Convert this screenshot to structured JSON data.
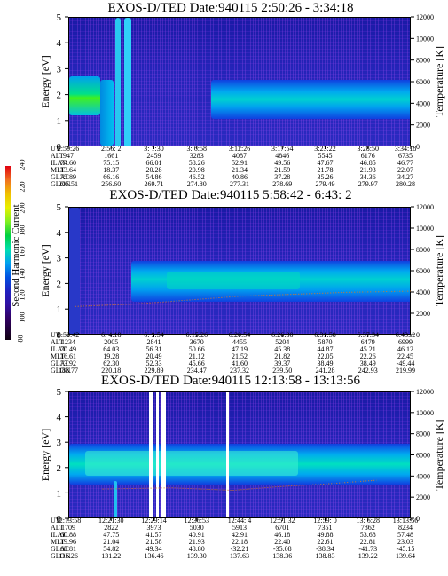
{
  "colorbar": {
    "title": "Second Harmonic Current",
    "ticks": [
      "240",
      "220",
      "200",
      "180",
      "160",
      "140",
      "120",
      "100",
      "80"
    ]
  },
  "row_labels": [
    "UT",
    "ALT",
    "ILAT",
    "MLT",
    "GLAT",
    "GLON"
  ],
  "panels": [
    {
      "title": "EXOS-D/TED  Date:940115  2:50:26 - 3:34:18",
      "left_axis": "Energy [eV]",
      "right_axis": "Temperature [K]",
      "rows": [
        [
          "2:50:26",
          "2:56: 2",
          "3: 1:30",
          "3: 6:58",
          "3:12:26",
          "3:17:54",
          "3:23:22",
          "3:28:50",
          "3:34:18"
        ],
        [
          "947",
          "1661",
          "2459",
          "3283",
          "4087",
          "4846",
          "5545",
          "6176",
          "6735"
        ],
        [
          "74.60",
          "75.15",
          "66.01",
          "58.26",
          "52.91",
          "49.56",
          "47.67",
          "46.85",
          "46.77"
        ],
        [
          "13.64",
          "18.37",
          "20.28",
          "20.98",
          "21.34",
          "21.59",
          "21.78",
          "21.93",
          "22.07"
        ],
        [
          "75.89",
          "66.16",
          "54.86",
          "46.52",
          "40.86",
          "37.28",
          "35.26",
          "34.36",
          "34.27"
        ],
        [
          "205.51",
          "256.60",
          "269.71",
          "274.80",
          "277.31",
          "278.69",
          "279.49",
          "279.97",
          "280.28"
        ]
      ]
    },
    {
      "title": "EXOS-D/TED  Date:940115  5:58:42 - 6:43: 2",
      "left_axis": "Energy [eV]",
      "right_axis": "Temperature [K]",
      "rows": [
        [
          "5:58:42",
          "6: 4:18",
          "6: 9:54",
          "6:15:26",
          "6:20:54",
          "6:26:30",
          "6:31:58",
          "6:37:34",
          "6:43: 2"
        ],
        [
          "1234",
          "2005",
          "2841",
          "3670",
          "4455",
          "5204",
          "5870",
          "6479",
          "6999"
        ],
        [
          "70.49",
          "64.03",
          "56.31",
          "50.66",
          "47.19",
          "45.38",
          "44.87",
          "45.21",
          "46.12"
        ],
        [
          "16.61",
          "19.28",
          "20.49",
          "21.12",
          "21.52",
          "21.82",
          "22.05",
          "22.26",
          "22.45"
        ],
        [
          "73.92",
          "62.30",
          "52.33",
          "45.66",
          "41.60",
          "39.37",
          "38.49",
          "38.49",
          "-49.44"
        ],
        [
          "188.77",
          "220.18",
          "229.89",
          "234.47",
          "237.32",
          "239.50",
          "241.28",
          "242.93",
          "219.99"
        ]
      ]
    },
    {
      "title": "EXOS-D/TED  Date:940115  12:13:58 - 13:13:56",
      "left_axis": "Energy [eV]",
      "right_axis": "Temperature [K]",
      "rows": [
        [
          "12:13:58",
          "12:21:30",
          "12:29:14",
          "12:36:53",
          "12:44: 4",
          "12:51:32",
          "12:59: 0",
          "13: 6:28",
          "13:13:56"
        ],
        [
          "1709",
          "2822",
          "3973",
          "5030",
          "5913",
          "6701",
          "7351",
          "7862",
          "8234"
        ],
        [
          "60.88",
          "47.75",
          "41.57",
          "40.91",
          "42.91",
          "46.18",
          "49.88",
          "53.68",
          "57.48"
        ],
        [
          "19.96",
          "21.04",
          "21.58",
          "21.93",
          "22.18",
          "22.40",
          "22.61",
          "22.81",
          "23.03"
        ],
        [
          "66.81",
          "54.82",
          "49.34",
          "48.80",
          "-32.21",
          "-35.08",
          "-38.34",
          "-41.73",
          "-45.15"
        ],
        [
          "116.26",
          "131.22",
          "136.46",
          "139.30",
          "137.63",
          "138.36",
          "138.83",
          "139.22",
          "139.64"
        ]
      ]
    }
  ],
  "chart_data": [
    {
      "type": "heatmap",
      "title": "EXOS-D/TED  Date:940115  2:50:26 - 3:34:18",
      "ylabel": "Energy [eV]",
      "y2label": "Temperature [K]",
      "ylim": [
        0,
        5
      ],
      "y2lim": [
        0,
        12000
      ],
      "yticks": [
        0,
        1,
        2,
        3,
        4,
        5
      ],
      "y2ticks": [
        0,
        2000,
        4000,
        6000,
        8000,
        10000,
        12000
      ],
      "xticks": [
        "2:50:26",
        "2:56: 2",
        "3: 1:30",
        "3: 6:58",
        "3:12:26",
        "3:17:54",
        "3:23:22",
        "3:28:50",
        "3:34:18"
      ],
      "colorbar_range": [
        80,
        240
      ]
    },
    {
      "type": "heatmap",
      "title": "EXOS-D/TED  Date:940115  5:58:42 - 6:43: 2",
      "ylabel": "Energy [eV]",
      "y2label": "Temperature [K]",
      "ylim": [
        0,
        5
      ],
      "y2lim": [
        0,
        12000
      ],
      "yticks": [
        0,
        1,
        2,
        3,
        4,
        5
      ],
      "y2ticks": [
        0,
        2000,
        4000,
        6000,
        8000,
        10000,
        12000
      ],
      "xticks": [
        "5:58:42",
        "6: 4:18",
        "6: 9:54",
        "6:15:26",
        "6:20:54",
        "6:26:30",
        "6:31:58",
        "6:37:34",
        "6:43: 2"
      ],
      "colorbar_range": [
        80,
        240
      ]
    },
    {
      "type": "heatmap",
      "title": "EXOS-D/TED  Date:940115  12:13:58 - 13:13:56",
      "ylabel": "Energy [eV]",
      "y2label": "Temperature [K]",
      "ylim": [
        0,
        5
      ],
      "y2lim": [
        0,
        12000
      ],
      "yticks": [
        0,
        1,
        2,
        3,
        4,
        5
      ],
      "y2ticks": [
        0,
        2000,
        4000,
        6000,
        8000,
        10000,
        12000
      ],
      "xticks": [
        "12:13:58",
        "12:21:30",
        "12:29:14",
        "12:36:53",
        "12:44: 4",
        "12:51:32",
        "12:59: 0",
        "13: 6:28",
        "13:13:56"
      ],
      "colorbar_range": [
        80,
        240
      ]
    }
  ]
}
